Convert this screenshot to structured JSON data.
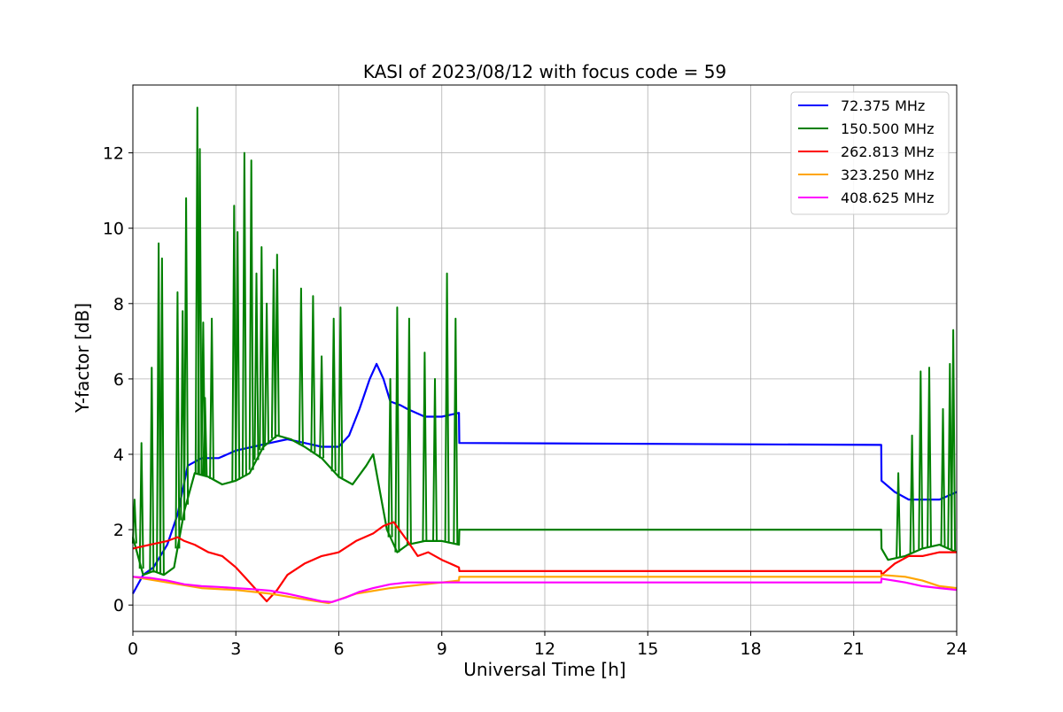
{
  "chart_data": {
    "type": "line",
    "title": "KASI of 2023/08/12 with focus code = 59",
    "xlabel": "Universal Time [h]",
    "ylabel": "Y-factor [dB]",
    "xlim": [
      0,
      24
    ],
    "ylim": [
      -0.7,
      13.8
    ],
    "xticks": [
      0,
      3,
      6,
      9,
      12,
      15,
      18,
      21,
      24
    ],
    "yticks": [
      0,
      2,
      4,
      6,
      8,
      10,
      12
    ],
    "grid": true,
    "legend_position": "top-right",
    "series": [
      {
        "name": " 72.375 MHz",
        "color": "#0000ff",
        "x": [
          0,
          0.3,
          0.6,
          1.0,
          1.3,
          1.6,
          2.0,
          2.5,
          3.0,
          3.5,
          4.0,
          4.5,
          5.0,
          5.5,
          6.0,
          6.3,
          6.6,
          6.9,
          7.1,
          7.3,
          7.5,
          7.8,
          8.0,
          8.5,
          9.0,
          9.5,
          9.51,
          21.8,
          21.81,
          22.2,
          22.6,
          23.0,
          23.5,
          24.0
        ],
        "values": [
          0.3,
          0.8,
          1.0,
          1.6,
          2.4,
          3.7,
          3.9,
          3.9,
          4.1,
          4.2,
          4.3,
          4.4,
          4.3,
          4.2,
          4.2,
          4.5,
          5.2,
          6.0,
          6.4,
          6.0,
          5.4,
          5.3,
          5.2,
          5.0,
          5.0,
          5.1,
          4.3,
          4.25,
          3.3,
          3.0,
          2.8,
          2.8,
          2.8,
          3.0
        ]
      },
      {
        "name": "150.500 MHz",
        "color": "#008000",
        "x": [
          0,
          0.3,
          0.6,
          0.9,
          1.2,
          1.5,
          1.8,
          2.2,
          2.6,
          3.0,
          3.4,
          3.8,
          4.2,
          4.6,
          5.0,
          5.5,
          6.0,
          6.4,
          6.8,
          7.0,
          7.2,
          7.4,
          7.7,
          8.0,
          8.5,
          9.0,
          9.5,
          9.51,
          21.8,
          21.81,
          22.0,
          22.5,
          23.0,
          23.5,
          24.0
        ],
        "values": [
          1.8,
          0.8,
          0.9,
          0.8,
          1.0,
          2.5,
          3.5,
          3.4,
          3.2,
          3.3,
          3.5,
          4.2,
          4.5,
          4.4,
          4.2,
          3.9,
          3.4,
          3.2,
          3.7,
          4.0,
          3.0,
          2.0,
          1.4,
          1.6,
          1.7,
          1.7,
          1.6,
          2.0,
          2.0,
          1.5,
          1.2,
          1.3,
          1.5,
          1.6,
          1.4
        ],
        "spikes": [
          [
            0.05,
            2.8
          ],
          [
            0.25,
            4.3
          ],
          [
            0.55,
            6.3
          ],
          [
            0.75,
            9.6
          ],
          [
            0.85,
            9.2
          ],
          [
            1.3,
            8.3
          ],
          [
            1.45,
            7.8
          ],
          [
            1.55,
            10.8
          ],
          [
            1.88,
            13.2
          ],
          [
            1.95,
            12.1
          ],
          [
            2.05,
            7.5
          ],
          [
            2.1,
            5.5
          ],
          [
            2.3,
            7.6
          ],
          [
            2.95,
            10.6
          ],
          [
            3.05,
            9.9
          ],
          [
            3.25,
            12.0
          ],
          [
            3.45,
            11.8
          ],
          [
            3.6,
            8.8
          ],
          [
            3.75,
            9.5
          ],
          [
            3.9,
            8.0
          ],
          [
            4.1,
            8.9
          ],
          [
            4.2,
            9.3
          ],
          [
            4.9,
            8.4
          ],
          [
            5.25,
            8.2
          ],
          [
            5.5,
            6.6
          ],
          [
            5.85,
            7.6
          ],
          [
            6.05,
            7.9
          ],
          [
            7.5,
            6.0
          ],
          [
            7.7,
            7.9
          ],
          [
            8.05,
            7.6
          ],
          [
            8.5,
            6.7
          ],
          [
            8.8,
            6.0
          ],
          [
            9.15,
            8.8
          ],
          [
            9.4,
            7.6
          ],
          [
            22.3,
            3.5
          ],
          [
            22.7,
            4.5
          ],
          [
            22.95,
            6.2
          ],
          [
            23.2,
            6.3
          ],
          [
            23.6,
            5.2
          ],
          [
            23.8,
            6.4
          ],
          [
            23.9,
            7.3
          ]
        ]
      },
      {
        "name": "262.813 MHz",
        "color": "#ff0000",
        "x": [
          0,
          0.5,
          1.0,
          1.3,
          1.5,
          1.8,
          2.2,
          2.6,
          3.0,
          3.3,
          3.6,
          3.9,
          4.2,
          4.5,
          5.0,
          5.5,
          6.0,
          6.5,
          7.0,
          7.3,
          7.6,
          8.0,
          8.3,
          8.6,
          9.0,
          9.5,
          9.51,
          21.8,
          21.81,
          22.2,
          22.6,
          23.0,
          23.5,
          24.0
        ],
        "values": [
          1.5,
          1.6,
          1.7,
          1.8,
          1.7,
          1.6,
          1.4,
          1.3,
          1.0,
          0.7,
          0.4,
          0.1,
          0.4,
          0.8,
          1.1,
          1.3,
          1.4,
          1.7,
          1.9,
          2.1,
          2.2,
          1.7,
          1.3,
          1.4,
          1.2,
          1.0,
          0.9,
          0.9,
          0.8,
          1.1,
          1.3,
          1.3,
          1.4,
          1.4
        ]
      },
      {
        "name": "323.250 MHz",
        "color": "#ffa500",
        "x": [
          0,
          1.0,
          2.0,
          3.0,
          4.0,
          5.0,
          5.7,
          6.5,
          7.5,
          8.5,
          9.5,
          9.51,
          21.8,
          21.81,
          22.5,
          23.0,
          23.5,
          24.0
        ],
        "values": [
          0.75,
          0.6,
          0.45,
          0.4,
          0.3,
          0.15,
          0.05,
          0.3,
          0.45,
          0.55,
          0.65,
          0.75,
          0.75,
          0.8,
          0.75,
          0.65,
          0.5,
          0.45
        ]
      },
      {
        "name": "408.625 MHz",
        "color": "#ff00ff",
        "x": [
          0,
          0.5,
          1.0,
          1.5,
          2.0,
          2.5,
          3.0,
          3.5,
          4.0,
          4.5,
          5.0,
          5.5,
          5.8,
          6.2,
          6.6,
          7.0,
          7.5,
          8.0,
          8.5,
          9.0,
          9.5,
          9.51,
          21.8,
          21.81,
          22.5,
          23.0,
          23.5,
          24.0
        ],
        "values": [
          0.75,
          0.72,
          0.65,
          0.55,
          0.5,
          0.48,
          0.45,
          0.42,
          0.38,
          0.3,
          0.2,
          0.1,
          0.08,
          0.2,
          0.35,
          0.45,
          0.55,
          0.6,
          0.6,
          0.6,
          0.6,
          0.6,
          0.6,
          0.7,
          0.6,
          0.5,
          0.45,
          0.4
        ]
      }
    ]
  }
}
